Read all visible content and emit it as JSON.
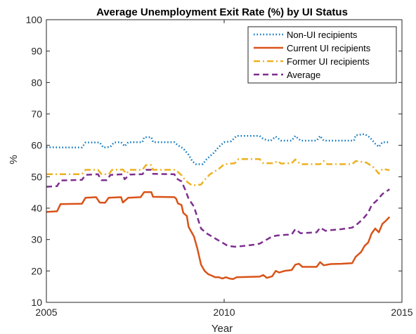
{
  "chart_data": {
    "type": "line",
    "title": "Average Unemployment Exit Rate (%) by UI Status",
    "xlabel": "Year",
    "ylabel": "%",
    "xlim": [
      2005,
      2015
    ],
    "ylim": [
      10,
      100
    ],
    "xticks": [
      2005,
      2010,
      2015
    ],
    "yticks": [
      10,
      20,
      30,
      40,
      50,
      60,
      70,
      80,
      90,
      100
    ],
    "grid": false,
    "legend_position": "top-right",
    "series": [
      {
        "name": "Non-UI recipients",
        "color": "#0072BD",
        "style": "dotted",
        "points": [
          [
            2005.0,
            59.4
          ],
          [
            2005.5,
            59.3
          ],
          [
            2006.0,
            59.3
          ],
          [
            2006.1,
            60.9
          ],
          [
            2006.5,
            60.9
          ],
          [
            2006.6,
            59.3
          ],
          [
            2006.8,
            59.5
          ],
          [
            2006.9,
            60.9
          ],
          [
            2007.1,
            61.0
          ],
          [
            2007.2,
            59.7
          ],
          [
            2007.3,
            61.0
          ],
          [
            2007.7,
            61.0
          ],
          [
            2007.75,
            62.6
          ],
          [
            2007.95,
            62.6
          ],
          [
            2008.0,
            61.0
          ],
          [
            2008.6,
            61.0
          ],
          [
            2008.7,
            60.0
          ],
          [
            2008.85,
            59.0
          ],
          [
            2009.0,
            57.0
          ],
          [
            2009.1,
            55.0
          ],
          [
            2009.2,
            54.0
          ],
          [
            2009.4,
            54.0
          ],
          [
            2009.5,
            55.5
          ],
          [
            2009.7,
            57.5
          ],
          [
            2009.85,
            59.5
          ],
          [
            2010.0,
            61.0
          ],
          [
            2010.2,
            61.3
          ],
          [
            2010.35,
            63.0
          ],
          [
            2011.0,
            63.0
          ],
          [
            2011.1,
            62.0
          ],
          [
            2011.3,
            61.4
          ],
          [
            2011.45,
            62.8
          ],
          [
            2011.6,
            61.5
          ],
          [
            2011.9,
            61.5
          ],
          [
            2012.0,
            63.0
          ],
          [
            2012.15,
            61.5
          ],
          [
            2012.6,
            61.5
          ],
          [
            2012.7,
            63.0
          ],
          [
            2012.8,
            61.5
          ],
          [
            2013.65,
            61.5
          ],
          [
            2013.7,
            63.2
          ],
          [
            2013.95,
            63.6
          ],
          [
            2014.1,
            62.5
          ],
          [
            2014.25,
            60.5
          ],
          [
            2014.35,
            59.5
          ],
          [
            2014.45,
            61.0
          ],
          [
            2014.65,
            61.0
          ]
        ]
      },
      {
        "name": "Current UI recipients",
        "color": "#D95319",
        "style": "solid",
        "points": [
          [
            2005.0,
            38.8
          ],
          [
            2005.3,
            39.0
          ],
          [
            2005.4,
            41.3
          ],
          [
            2006.0,
            41.4
          ],
          [
            2006.1,
            43.3
          ],
          [
            2006.4,
            43.5
          ],
          [
            2006.5,
            41.8
          ],
          [
            2006.65,
            41.7
          ],
          [
            2006.75,
            43.3
          ],
          [
            2007.1,
            43.5
          ],
          [
            2007.15,
            41.8
          ],
          [
            2007.3,
            43.3
          ],
          [
            2007.65,
            43.5
          ],
          [
            2007.75,
            45.1
          ],
          [
            2007.95,
            45.1
          ],
          [
            2008.0,
            43.6
          ],
          [
            2008.6,
            43.5
          ],
          [
            2008.65,
            43.0
          ],
          [
            2008.7,
            41.5
          ],
          [
            2008.8,
            41.0
          ],
          [
            2008.85,
            38.5
          ],
          [
            2008.95,
            37.5
          ],
          [
            2009.0,
            34.0
          ],
          [
            2009.15,
            31.0
          ],
          [
            2009.25,
            27.0
          ],
          [
            2009.35,
            22.0
          ],
          [
            2009.45,
            20.0
          ],
          [
            2009.55,
            19.0
          ],
          [
            2009.65,
            18.5
          ],
          [
            2009.75,
            18.0
          ],
          [
            2009.85,
            18.0
          ],
          [
            2009.95,
            17.6
          ],
          [
            2010.05,
            18.0
          ],
          [
            2010.15,
            17.6
          ],
          [
            2010.25,
            17.4
          ],
          [
            2010.35,
            18.0
          ],
          [
            2011.0,
            18.2
          ],
          [
            2011.1,
            18.7
          ],
          [
            2011.2,
            17.8
          ],
          [
            2011.35,
            18.3
          ],
          [
            2011.45,
            20.0
          ],
          [
            2011.55,
            19.5
          ],
          [
            2011.7,
            20.0
          ],
          [
            2011.9,
            20.3
          ],
          [
            2012.0,
            22.0
          ],
          [
            2012.1,
            22.3
          ],
          [
            2012.2,
            21.3
          ],
          [
            2012.6,
            21.3
          ],
          [
            2012.7,
            22.8
          ],
          [
            2012.8,
            21.8
          ],
          [
            2013.0,
            22.2
          ],
          [
            2013.3,
            22.3
          ],
          [
            2013.6,
            22.5
          ],
          [
            2013.7,
            24.5
          ],
          [
            2013.85,
            26.0
          ],
          [
            2013.95,
            28.0
          ],
          [
            2014.05,
            29.0
          ],
          [
            2014.15,
            32.0
          ],
          [
            2014.25,
            33.5
          ],
          [
            2014.35,
            32.3
          ],
          [
            2014.45,
            35.0
          ],
          [
            2014.55,
            36.0
          ],
          [
            2014.65,
            37.2
          ]
        ]
      },
      {
        "name": "Former UI recipients",
        "color": "#EDB120",
        "style": "dashdot",
        "points": [
          [
            2005.0,
            50.8
          ],
          [
            2006.0,
            50.8
          ],
          [
            2006.1,
            52.2
          ],
          [
            2006.45,
            52.2
          ],
          [
            2006.55,
            50.8
          ],
          [
            2006.75,
            50.8
          ],
          [
            2006.85,
            52.2
          ],
          [
            2007.15,
            52.3
          ],
          [
            2007.25,
            51.0
          ],
          [
            2007.35,
            52.2
          ],
          [
            2007.7,
            52.2
          ],
          [
            2007.8,
            53.7
          ],
          [
            2007.95,
            53.7
          ],
          [
            2008.0,
            52.2
          ],
          [
            2008.6,
            52.2
          ],
          [
            2008.65,
            52.0
          ],
          [
            2008.8,
            50.5
          ],
          [
            2008.9,
            49.0
          ],
          [
            2009.0,
            48.0
          ],
          [
            2009.1,
            47.2
          ],
          [
            2009.35,
            47.5
          ],
          [
            2009.45,
            49.0
          ],
          [
            2009.6,
            50.8
          ],
          [
            2009.85,
            52.5
          ],
          [
            2010.0,
            54.0
          ],
          [
            2010.3,
            54.3
          ],
          [
            2010.4,
            55.6
          ],
          [
            2011.0,
            55.6
          ],
          [
            2011.1,
            54.3
          ],
          [
            2011.4,
            54.3
          ],
          [
            2011.5,
            55.0
          ],
          [
            2011.6,
            54.2
          ],
          [
            2011.9,
            54.3
          ],
          [
            2012.0,
            55.5
          ],
          [
            2012.15,
            54.0
          ],
          [
            2012.7,
            54.0
          ],
          [
            2012.8,
            55.0
          ],
          [
            2012.9,
            54.0
          ],
          [
            2013.6,
            54.0
          ],
          [
            2013.7,
            55.0
          ],
          [
            2014.0,
            54.5
          ],
          [
            2014.2,
            53.0
          ],
          [
            2014.35,
            51.0
          ],
          [
            2014.45,
            52.5
          ],
          [
            2014.65,
            52.1
          ]
        ]
      },
      {
        "name": "Average",
        "color": "#7E2F8E",
        "style": "dashed",
        "points": [
          [
            2005.0,
            46.8
          ],
          [
            2005.3,
            47.0
          ],
          [
            2005.4,
            48.8
          ],
          [
            2006.0,
            49.0
          ],
          [
            2006.1,
            50.6
          ],
          [
            2006.45,
            50.8
          ],
          [
            2006.55,
            48.9
          ],
          [
            2006.7,
            48.9
          ],
          [
            2006.8,
            50.6
          ],
          [
            2007.15,
            50.8
          ],
          [
            2007.2,
            49.2
          ],
          [
            2007.35,
            50.7
          ],
          [
            2007.7,
            50.8
          ],
          [
            2007.8,
            52.2
          ],
          [
            2007.95,
            52.2
          ],
          [
            2008.0,
            50.9
          ],
          [
            2008.6,
            50.8
          ],
          [
            2008.65,
            49.5
          ],
          [
            2008.8,
            48.5
          ],
          [
            2008.9,
            46.0
          ],
          [
            2009.0,
            43.0
          ],
          [
            2009.15,
            40.5
          ],
          [
            2009.25,
            37.0
          ],
          [
            2009.35,
            33.5
          ],
          [
            2009.5,
            32.0
          ],
          [
            2009.65,
            31.0
          ],
          [
            2009.8,
            30.0
          ],
          [
            2009.95,
            29.0
          ],
          [
            2010.1,
            28.0
          ],
          [
            2010.3,
            27.7
          ],
          [
            2010.5,
            27.9
          ],
          [
            2010.8,
            28.3
          ],
          [
            2011.0,
            28.7
          ],
          [
            2011.2,
            30.0
          ],
          [
            2011.35,
            31.0
          ],
          [
            2011.5,
            31.3
          ],
          [
            2011.7,
            31.5
          ],
          [
            2011.9,
            31.6
          ],
          [
            2012.0,
            33.3
          ],
          [
            2012.15,
            32.0
          ],
          [
            2012.6,
            32.3
          ],
          [
            2012.7,
            33.8
          ],
          [
            2012.85,
            32.8
          ],
          [
            2013.0,
            33.0
          ],
          [
            2013.3,
            33.3
          ],
          [
            2013.6,
            33.8
          ],
          [
            2013.75,
            35.0
          ],
          [
            2013.9,
            36.5
          ],
          [
            2014.05,
            38.5
          ],
          [
            2014.15,
            41.0
          ],
          [
            2014.3,
            42.5
          ],
          [
            2014.45,
            44.5
          ],
          [
            2014.65,
            46.0
          ]
        ]
      }
    ]
  }
}
